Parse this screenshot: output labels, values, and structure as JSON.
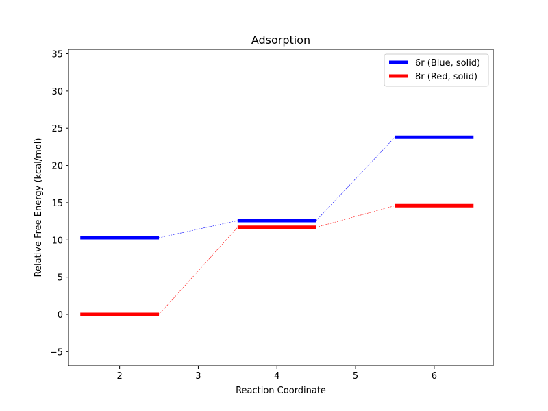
{
  "chart_data": {
    "type": "line",
    "title": "Adsorption",
    "xlabel": "Reaction Coordinate",
    "ylabel": "Relative Free Energy (kcal/mol)",
    "xlim": [
      1.35,
      6.75
    ],
    "ylim": [
      -6.9,
      35.6
    ],
    "xticks": [
      2,
      3,
      4,
      5,
      6
    ],
    "yticks": [
      -5,
      0,
      5,
      10,
      15,
      20,
      25,
      30,
      35
    ],
    "ytick_labels": [
      "−5",
      "0",
      "5",
      "10",
      "15",
      "20",
      "25",
      "30",
      "35"
    ],
    "level_half_width": 0.5,
    "legend_position": "top-right",
    "grid": false,
    "series": [
      {
        "name": "6r (Blue, solid)",
        "color": "#0000ff",
        "x": [
          2,
          4,
          6
        ],
        "y": [
          10.3,
          12.6,
          23.8
        ]
      },
      {
        "name": "8r (Red, solid)",
        "color": "#ff0000",
        "x": [
          2,
          4,
          6
        ],
        "y": [
          0.0,
          11.7,
          14.6
        ]
      }
    ]
  }
}
